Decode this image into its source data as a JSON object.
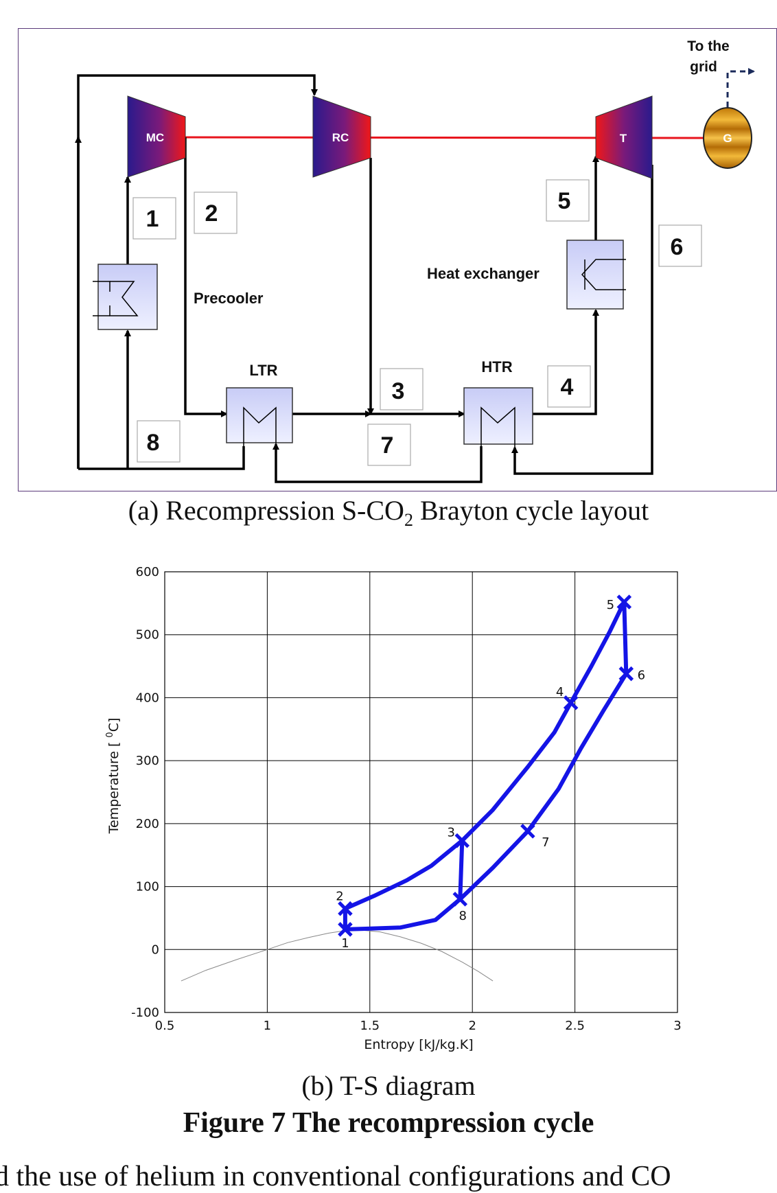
{
  "layout": {
    "components": {
      "mc": "MC",
      "rc": "RC",
      "turbine": "T",
      "generator": "G",
      "ltr": "LTR",
      "htr": "HTR",
      "precooler": "Precooler",
      "heat_exchanger": "Heat exchanger"
    },
    "grid_label_line1": "To the",
    "grid_label_line2": "grid",
    "state_points": [
      "1",
      "2",
      "3",
      "4",
      "5",
      "6",
      "7",
      "8"
    ],
    "colors": {
      "shaft": "#e8141c",
      "arrow": "#000000",
      "hx_fill": "#d9dcfb",
      "turbo_left": "#2a1a8c",
      "turbo_right": "#f01818",
      "generator": "#d08a10"
    }
  },
  "caption_a_prefix": "(a) Recompression S-CO",
  "caption_a_sub": "2",
  "caption_a_suffix": " Brayton cycle layout",
  "caption_b": "(b) T-S diagram",
  "figure_caption": "Figure 7 The recompression cycle",
  "bottom_text": "d the use of helium in conventional configurations and CO",
  "chart_data": {
    "type": "line",
    "xlabel": "Entropy [kJ/kg.K]",
    "ylabel_prefix": "Temperature [ ",
    "ylabel_sup": "0",
    "ylabel_suffix": "C]",
    "xlim": [
      0.5,
      3
    ],
    "ylim": [
      -100,
      600
    ],
    "x_ticks": [
      "0.5",
      "1",
      "1.5",
      "2",
      "2.5",
      "3"
    ],
    "y_ticks": [
      "-100",
      "0",
      "100",
      "200",
      "300",
      "400",
      "500",
      "600"
    ],
    "x_tick_values": [
      0.5,
      1,
      1.5,
      2,
      2.5,
      3
    ],
    "y_tick_values": [
      -100,
      0,
      100,
      200,
      300,
      400,
      500,
      600
    ],
    "grid": true,
    "cycle_color": "#1414e6",
    "cycle_path": [
      [
        1.38,
        32
      ],
      [
        1.38,
        65
      ],
      [
        1.52,
        85
      ],
      [
        1.68,
        110
      ],
      [
        1.8,
        133
      ],
      [
        1.95,
        173
      ],
      [
        2.1,
        222
      ],
      [
        2.27,
        290
      ],
      [
        2.4,
        345
      ],
      [
        2.48,
        392
      ],
      [
        2.58,
        450
      ],
      [
        2.67,
        505
      ],
      [
        2.74,
        552
      ],
      [
        2.75,
        438
      ],
      [
        2.64,
        380
      ],
      [
        2.53,
        320
      ],
      [
        2.42,
        255
      ],
      [
        2.27,
        188
      ],
      [
        2.1,
        130
      ],
      [
        1.94,
        80
      ],
      [
        1.95,
        173
      ],
      [
        1.94,
        80
      ],
      [
        1.82,
        47
      ],
      [
        1.65,
        35
      ],
      [
        1.48,
        33
      ],
      [
        1.38,
        32
      ]
    ],
    "state_points": [
      {
        "label": "1",
        "s": 1.38,
        "t": 32
      },
      {
        "label": "2",
        "s": 1.38,
        "t": 65
      },
      {
        "label": "3",
        "s": 1.95,
        "t": 173
      },
      {
        "label": "4",
        "s": 2.48,
        "t": 392
      },
      {
        "label": "5",
        "s": 2.74,
        "t": 552
      },
      {
        "label": "6",
        "s": 2.75,
        "t": 438
      },
      {
        "label": "7",
        "s": 2.27,
        "t": 188
      },
      {
        "label": "8",
        "s": 1.94,
        "t": 80
      }
    ],
    "saturation_dome": [
      [
        0.58,
        -50
      ],
      [
        0.7,
        -33
      ],
      [
        0.85,
        -16
      ],
      [
        1.0,
        0
      ],
      [
        1.1,
        11
      ],
      [
        1.2,
        19
      ],
      [
        1.3,
        26
      ],
      [
        1.38,
        30
      ],
      [
        1.45,
        31
      ],
      [
        1.55,
        28
      ],
      [
        1.65,
        20
      ],
      [
        1.75,
        10
      ],
      [
        1.85,
        -3
      ],
      [
        1.95,
        -20
      ],
      [
        2.03,
        -35
      ],
      [
        2.1,
        -50
      ]
    ]
  }
}
